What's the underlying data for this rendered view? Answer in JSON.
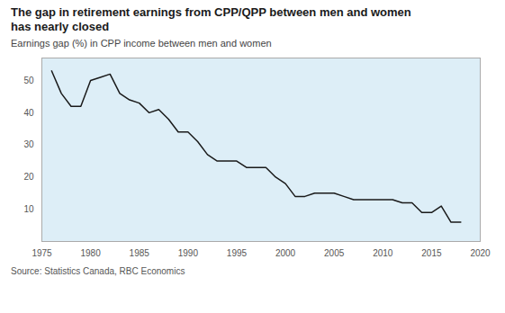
{
  "chart_data": {
    "type": "line",
    "title": "The gap in retirement earnings from CPP/QPP between men and women\nhas nearly closed",
    "subtitle": "Earnings gap (%) in CPP income between men and women",
    "source": "Source: Statistics Canada, RBC Economics",
    "x": [
      1976,
      1977,
      1978,
      1979,
      1980,
      1981,
      1982,
      1983,
      1984,
      1985,
      1986,
      1987,
      1988,
      1989,
      1990,
      1991,
      1992,
      1993,
      1994,
      1995,
      1996,
      1997,
      1998,
      1999,
      2000,
      2001,
      2002,
      2003,
      2004,
      2005,
      2006,
      2007,
      2008,
      2009,
      2010,
      2011,
      2012,
      2013,
      2014,
      2015,
      2016,
      2017,
      2018
    ],
    "values": [
      53,
      46,
      42,
      42,
      50,
      51,
      52,
      46,
      44,
      43,
      40,
      41,
      38,
      34,
      34,
      31,
      27,
      25,
      25,
      25,
      23,
      23,
      23,
      20,
      18,
      14,
      14,
      15,
      15,
      15,
      14,
      13,
      13,
      13,
      13,
      13,
      12,
      12,
      9,
      9,
      11,
      6,
      6
    ],
    "color": "#1a1a1a",
    "xlim": [
      1975,
      2020
    ],
    "xticks": [
      1975,
      1980,
      1985,
      1990,
      1995,
      2000,
      2005,
      2010,
      2015,
      2020
    ],
    "ylim": [
      0,
      57
    ],
    "yticks": [
      10,
      20,
      30,
      40,
      50
    ],
    "grid": false
  }
}
